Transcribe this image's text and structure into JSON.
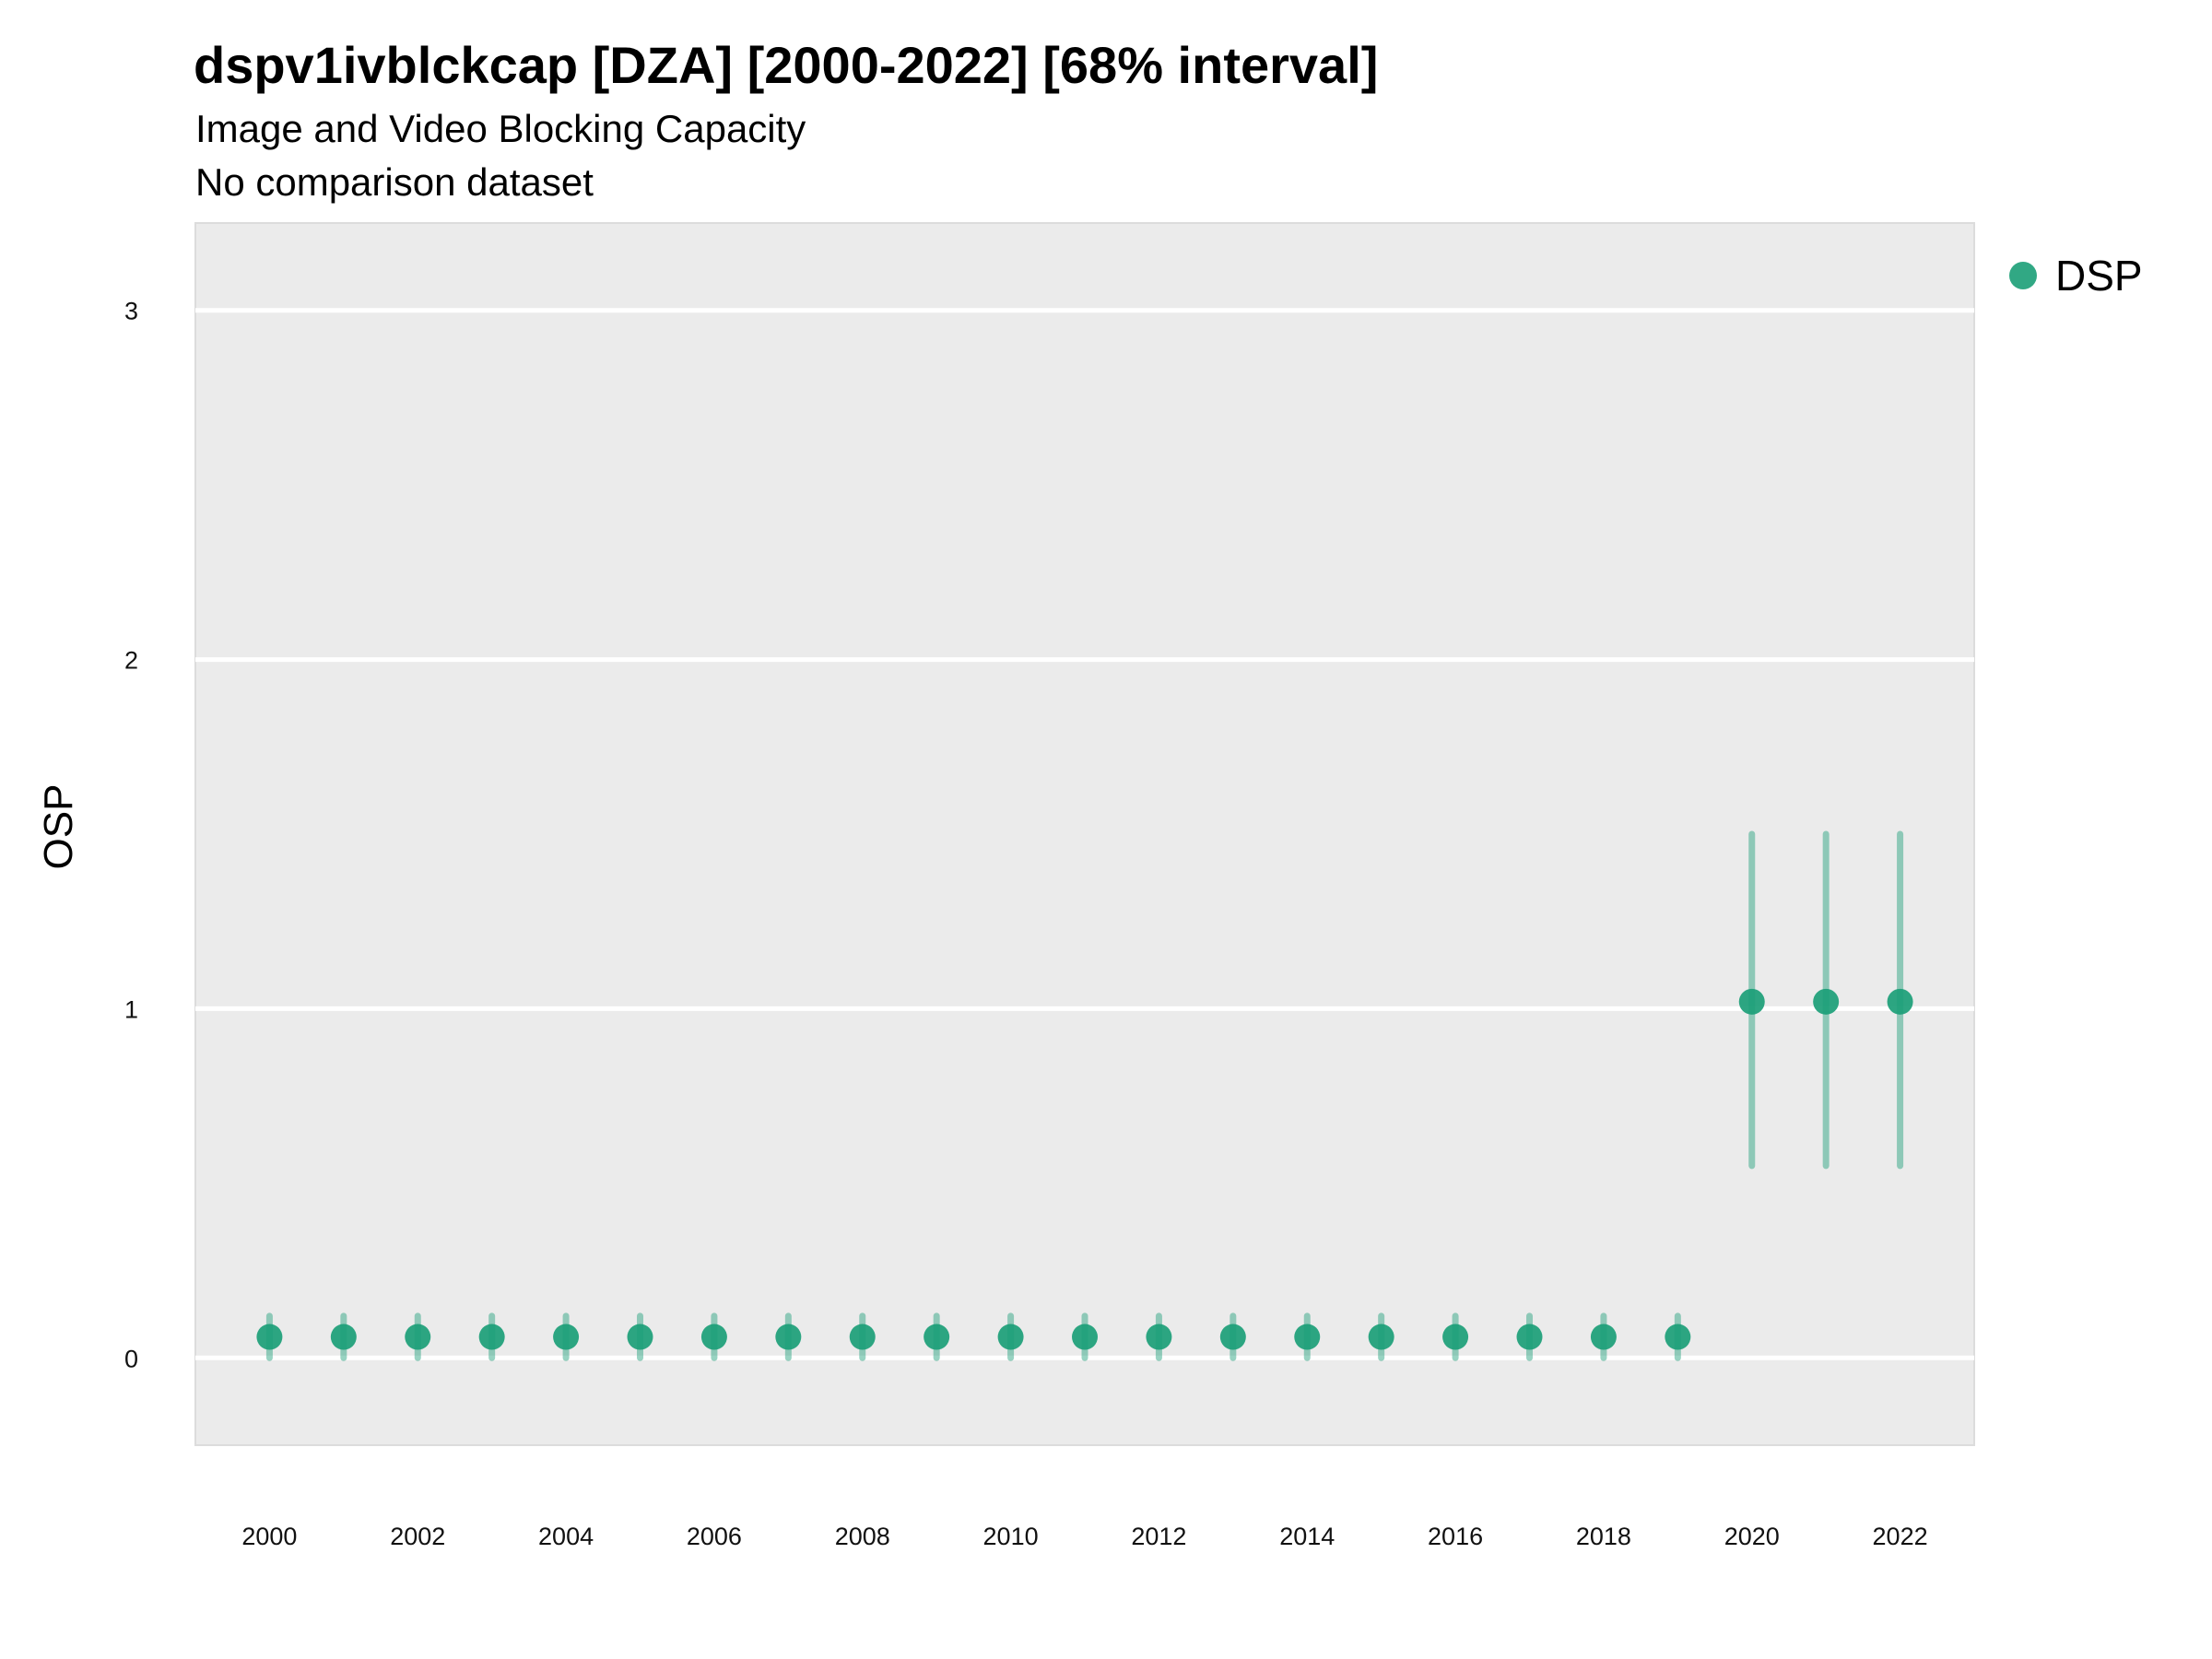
{
  "chart_data": {
    "type": "scatter",
    "title": "dspv1ivblckcap [DZA] [2000-2022] [68% interval]",
    "subtitle": "Image and Video Blocking Capacity",
    "subtitle2": "No comparison dataset",
    "xlabel": "",
    "ylabel": "OSP",
    "xlim": [
      1999,
      2023
    ],
    "ylim": [
      -0.25,
      3.25
    ],
    "y_ticks": [
      0,
      1,
      2,
      3
    ],
    "x_ticks": [
      2000,
      2002,
      2004,
      2006,
      2008,
      2010,
      2012,
      2014,
      2016,
      2018,
      2020,
      2022
    ],
    "grid": true,
    "legend_position": "top-right",
    "series": [
      {
        "name": "DSP",
        "color": "#1b9e77",
        "x": [
          2000,
          2001,
          2002,
          2003,
          2004,
          2005,
          2006,
          2007,
          2008,
          2009,
          2010,
          2011,
          2012,
          2013,
          2014,
          2015,
          2016,
          2017,
          2018,
          2019,
          2020,
          2021,
          2022
        ],
        "y": [
          0.06,
          0.06,
          0.06,
          0.06,
          0.06,
          0.06,
          0.06,
          0.06,
          0.06,
          0.06,
          0.06,
          0.06,
          0.06,
          0.06,
          0.06,
          0.06,
          0.06,
          0.06,
          0.06,
          0.06,
          1.02,
          1.02,
          1.02
        ],
        "lower": [
          0.0,
          0.0,
          0.0,
          0.0,
          0.0,
          0.0,
          0.0,
          0.0,
          0.0,
          0.0,
          0.0,
          0.0,
          0.0,
          0.0,
          0.0,
          0.0,
          0.0,
          0.0,
          0.0,
          0.0,
          0.55,
          0.55,
          0.55
        ],
        "upper": [
          0.12,
          0.12,
          0.12,
          0.12,
          0.12,
          0.12,
          0.12,
          0.12,
          0.12,
          0.12,
          0.12,
          0.12,
          0.12,
          0.12,
          0.12,
          0.12,
          0.12,
          0.12,
          0.12,
          0.12,
          1.5,
          1.5,
          1.5
        ]
      }
    ]
  }
}
